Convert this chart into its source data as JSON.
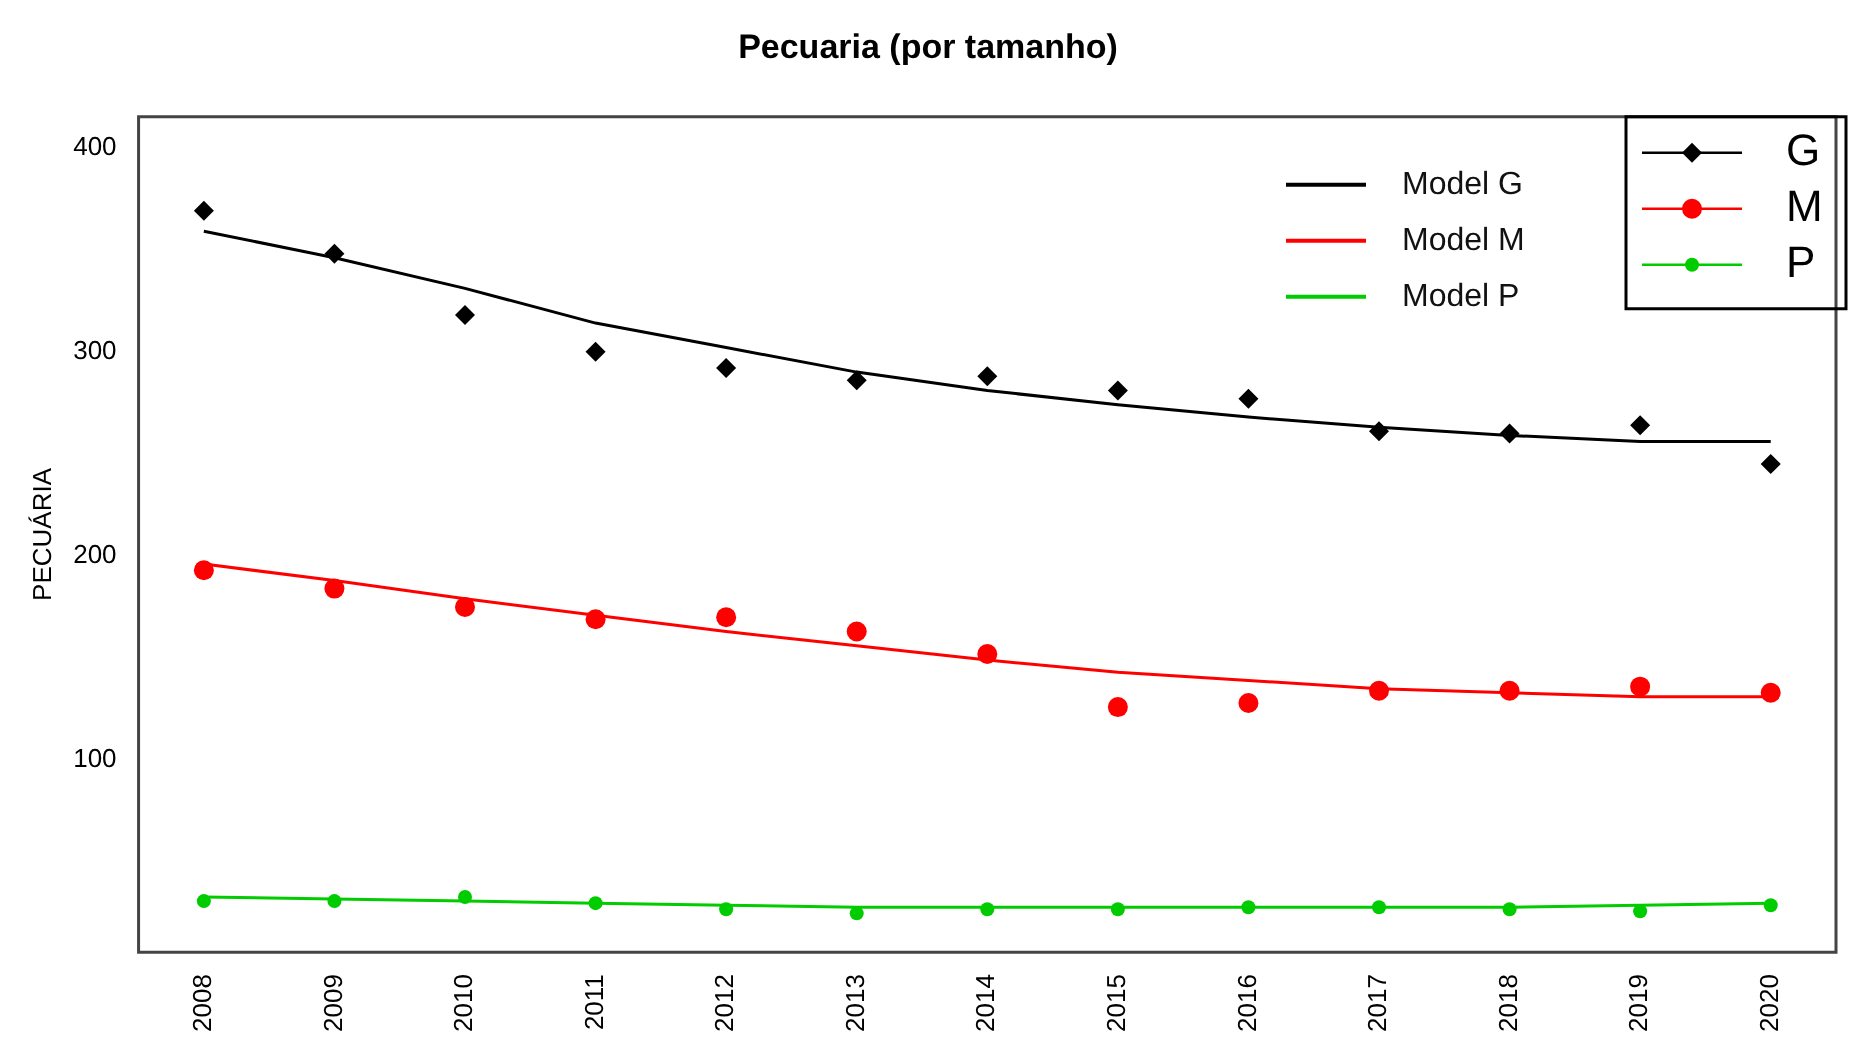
{
  "chart_data": {
    "type": "line",
    "title": "Pecuaria (por tamanho)",
    "ylabel": "PECUÁRIA",
    "categories": [
      "2008",
      "2009",
      "2010",
      "2011",
      "2012",
      "2013",
      "2014",
      "2015",
      "2016",
      "2017",
      "2018",
      "2019",
      "2020"
    ],
    "ylim": [
      6,
      415
    ],
    "yticks": [
      100,
      200,
      300,
      400
    ],
    "grid": false,
    "legend": "top right",
    "series": [
      {
        "name": "Model G",
        "color": "#000000",
        "type": "line",
        "marker": "none",
        "values": [
          359,
          346,
          331,
          314,
          302,
          290,
          281,
          274,
          268,
          263,
          259,
          256,
          256
        ]
      },
      {
        "name": "Model M",
        "color": "#ff0000",
        "type": "line",
        "marker": "none",
        "values": [
          196,
          188,
          179,
          171,
          163,
          156,
          149,
          143,
          139,
          135,
          133,
          131,
          131
        ]
      },
      {
        "name": "Model P",
        "color": "#00cc00",
        "type": "line",
        "marker": "none",
        "values": [
          33,
          32,
          31,
          30,
          29,
          28,
          28,
          28,
          28,
          28,
          28,
          29,
          30
        ]
      },
      {
        "name": "G",
        "color": "#000000",
        "type": "scatter",
        "marker": "diamond",
        "values": [
          369,
          348,
          318,
          300,
          292,
          286,
          288,
          281,
          277,
          261,
          260,
          264,
          245
        ]
      },
      {
        "name": "M",
        "color": "#ff0000",
        "type": "scatter",
        "marker": "circle",
        "values": [
          193,
          184,
          175,
          169,
          170,
          163,
          152,
          126,
          128,
          134,
          134,
          136,
          133
        ]
      },
      {
        "name": "P",
        "color": "#00cc00",
        "type": "scatter",
        "marker": "circle",
        "values": [
          31,
          31,
          33,
          30,
          27,
          25,
          27,
          27,
          28,
          28,
          27,
          26,
          29
        ]
      }
    ]
  }
}
